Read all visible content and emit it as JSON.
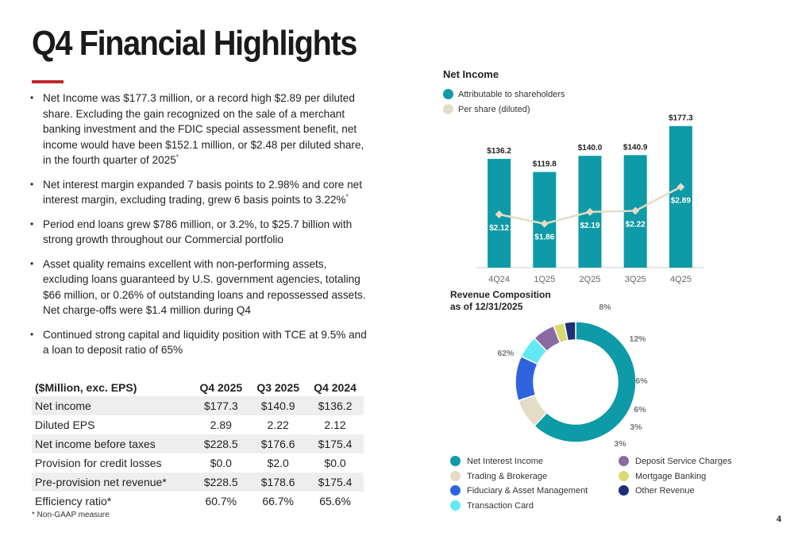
{
  "title": "Q4 Financial Highlights",
  "bullets": [
    {
      "text": "Net Income was $177.3 million, or a record high $2.89 per diluted share. Excluding the gain recognized on the sale of a merchant banking investment and the FDIC special assessment benefit, net income would have been $152.1 million, or $2.48 per diluted share, in the fourth quarter of 2025",
      "sup": "*"
    },
    {
      "text": "Net interest margin expanded 7 basis points to 2.98% and core net interest margin, excluding trading, grew 6 basis points to 3.22%",
      "sup": "*"
    },
    {
      "text": "Period end loans grew $786 million, or 3.2%, to $25.7 billion with strong growth throughout our Commercial portfolio",
      "sup": ""
    },
    {
      "text": "Asset quality remains excellent with non-performing assets, excluding loans guaranteed by U.S. government agencies, totaling $66 million, or 0.26% of outstanding loans and repossessed assets. Net charge-offs were $1.4 million during Q4",
      "sup": ""
    },
    {
      "text": "Continued strong capital and liquidity position with TCE at 9.5% and a loan to deposit ratio of 65%",
      "sup": ""
    }
  ],
  "table": {
    "headers": [
      "($Million, exc. EPS)",
      "Q4 2025",
      "Q3 2025",
      "Q4 2024"
    ],
    "rows": [
      [
        "Net income",
        "$177.3",
        "$140.9",
        "$136.2"
      ],
      [
        "Diluted EPS",
        "2.89",
        "2.22",
        "2.12"
      ],
      [
        "Net income before taxes",
        "$228.5",
        "$176.6",
        "$175.4"
      ],
      [
        "Provision for credit losses",
        "$0.0",
        "$2.0",
        "$0.0"
      ],
      [
        "Pre-provision net revenue*",
        "$228.5",
        "$178.6",
        "$175.4"
      ],
      [
        "Efficiency ratio*",
        "60.7%",
        "66.7%",
        "65.6%"
      ]
    ]
  },
  "footnote": "*  Non-GAAP measure",
  "page_number": "4",
  "colors": {
    "accent_rule": "#c1272d",
    "bar": "#0e9aa7",
    "eps_line": "#e5dcc8"
  },
  "chart_data": [
    {
      "type": "bar",
      "title": "Net Income",
      "categories": [
        "4Q24",
        "1Q25",
        "2Q25",
        "3Q25",
        "4Q25"
      ],
      "series": [
        {
          "name": "Attributable to shareholders",
          "type": "bar",
          "values": [
            136.2,
            119.8,
            140.0,
            140.9,
            177.3
          ],
          "labels": [
            "$136.2",
            "$119.8",
            "$140.0",
            "$140.9",
            "$177.3"
          ],
          "color": "#0e9aa7"
        },
        {
          "name": "Per share (diluted)",
          "type": "line",
          "values": [
            2.12,
            1.86,
            2.19,
            2.22,
            2.89
          ],
          "labels": [
            "$2.12",
            "$1.86",
            "$2.19",
            "$2.22",
            "$2.89"
          ],
          "color": "#e5dcc8"
        }
      ],
      "ylim": [
        0,
        180
      ],
      "grid": false,
      "legend": "top-left"
    },
    {
      "type": "pie",
      "donut": true,
      "title": "Revenue Composition",
      "subtitle": "as of 12/31/2025",
      "slices": [
        {
          "name": "Net Interest Income",
          "value": 62,
          "label": "62%",
          "color": "#0e9aa7"
        },
        {
          "name": "Trading & Brokerage",
          "value": 8,
          "label": "8%",
          "color": "#e5dcc8"
        },
        {
          "name": "Fiduciary & Asset Management",
          "value": 12,
          "label": "12%",
          "color": "#2f63de"
        },
        {
          "name": "Transaction Card",
          "value": 6,
          "label": "6%",
          "color": "#62e9f5"
        },
        {
          "name": "Deposit Service Charges",
          "value": 6,
          "label": "6%",
          "color": "#8a6aa3"
        },
        {
          "name": "Mortgage Banking",
          "value": 3,
          "label": "3%",
          "color": "#d9db72"
        },
        {
          "name": "Other Revenue",
          "value": 3,
          "label": "3%",
          "color": "#1f2f7a"
        }
      ],
      "legend": "bottom"
    }
  ]
}
